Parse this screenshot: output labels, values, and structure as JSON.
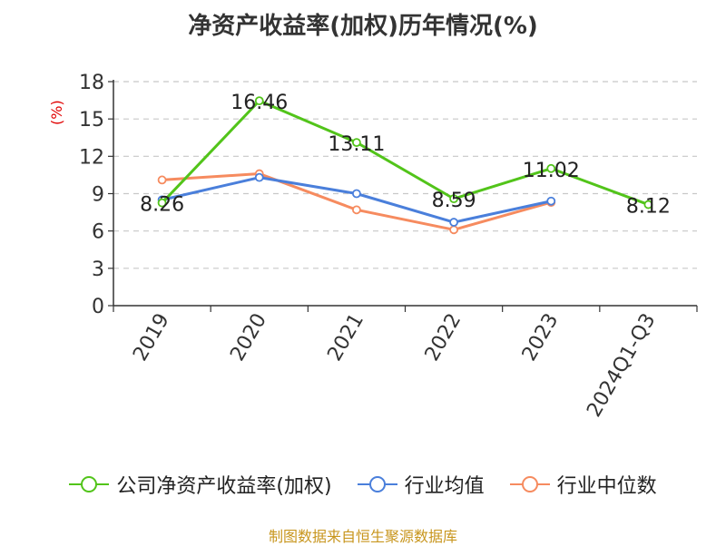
{
  "title": "净资产收益率(加权)历年情况(%)",
  "source": "制图数据来自恒生聚源数据库",
  "chart_data": {
    "type": "line",
    "title": "净资产收益率(加权)历年情况(%)",
    "ylabel": "(%)",
    "xlabel": "",
    "categories": [
      "2019",
      "2020",
      "2021",
      "2022",
      "2023",
      "2024Q1-Q3"
    ],
    "ylim": [
      0,
      18
    ],
    "yticks": [
      0,
      3,
      6,
      9,
      12,
      15,
      18
    ],
    "grid": true,
    "legend_position": "bottom",
    "series": [
      {
        "name": "公司净资产收益率(加权)",
        "color": "#52c41a",
        "values": [
          8.26,
          16.46,
          13.11,
          8.59,
          11.02,
          8.12
        ],
        "labels": [
          "8.26",
          "16.46",
          "13.11",
          "8.59",
          "11.02",
          "8.12"
        ]
      },
      {
        "name": "行业均值",
        "color": "#4a7fdb",
        "values": [
          8.5,
          10.3,
          9.0,
          6.7,
          8.4,
          null
        ]
      },
      {
        "name": "行业中位数",
        "color": "#f68b5f",
        "values": [
          10.1,
          10.6,
          7.7,
          6.1,
          8.3,
          null
        ]
      }
    ]
  }
}
